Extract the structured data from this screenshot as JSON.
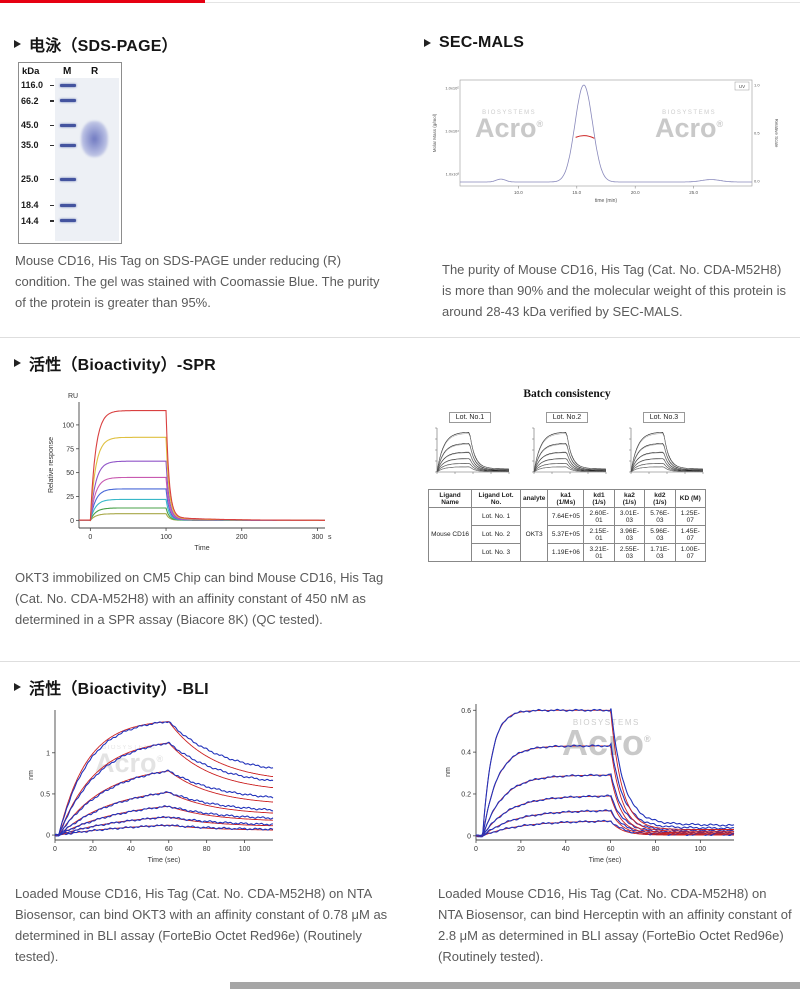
{
  "colors": {
    "accent_red": "#e60012"
  },
  "watermark": {
    "brand": "Acro",
    "reg": "®",
    "sub": "BIOSYSTEMS"
  },
  "sections": {
    "sds_page": {
      "title": "电泳（SDS-PAGE）",
      "caption": "Mouse CD16, His Tag on SDS-PAGE under reducing (R) condition. The gel was stained with Coomassie Blue. The purity of the protein is greater than 95%."
    },
    "sec_mals": {
      "title": "SEC-MALS",
      "caption": "The purity of Mouse CD16, His Tag (Cat. No. CDA-M52H8) is more than 90% and the molecular weight of this protein is around 28-43 kDa verified by SEC-MALS."
    },
    "spr": {
      "title": "活性（Bioactivity）-SPR",
      "caption": "OKT3 immobilized on CM5 Chip can bind Mouse CD16, His Tag (Cat. No. CDA-M52H8) with an affinity constant of 450 nM as determined in a SPR assay (Biacore 8K) (QC tested)."
    },
    "bli": {
      "title": "活性（Bioactivity）-BLI",
      "caption_left": "Loaded Mouse CD16, His Tag (Cat. No. CDA-M52H8) on NTA Biosensor, can bind OKT3 with an affinity constant of 0.78 μM as determined in BLI assay (ForteBio Octet Red96e) (Routinely tested).",
      "caption_right": "Loaded Mouse CD16, His Tag (Cat. No. CDA-M52H8) on NTA Biosensor, can bind Herceptin with an affinity constant of 2.8 μM as determined in BLI assay (ForteBio Octet Red96e) (Routinely tested)."
    }
  },
  "chart_data": [
    {
      "id": "sds_page_gel",
      "type": "gel",
      "kda_header": "kDa",
      "lanes": [
        "M",
        "R"
      ],
      "markers": [
        {
          "label": "116.0",
          "pos": 4
        },
        {
          "label": "66.2",
          "pos": 14
        },
        {
          "label": "45.0",
          "pos": 30
        },
        {
          "label": "35.0",
          "pos": 43
        },
        {
          "label": "25.0",
          "pos": 65
        },
        {
          "label": "18.4",
          "pos": 82
        },
        {
          "label": "14.4",
          "pos": 92
        }
      ],
      "sample_band": {
        "lane": "R",
        "center_pos": 39,
        "spread": 12
      }
    },
    {
      "id": "sec_mals",
      "type": "line",
      "xlabel": "time (min)",
      "ylabel_left": "Molar Mass (g/mol)",
      "ylabel_right": "Relative Scale",
      "x_range": [
        5,
        30
      ],
      "xticks": [
        10.0,
        15.0,
        20.0,
        25.0
      ],
      "yticks_left": [
        "1.0x10⁵",
        "1.0x10⁴",
        "1.0x10³"
      ],
      "yticks_right": [
        "1.0",
        "0.5",
        "0.0"
      ],
      "legend": [
        "UV"
      ],
      "uv_peak": {
        "center": 15.6,
        "sigma": 0.75,
        "height": 1.0
      },
      "minor_bumps": [
        {
          "center": 8.5,
          "sigma": 0.4,
          "height": 0.03
        },
        {
          "center": 26.5,
          "sigma": 0.8,
          "height": 0.025
        }
      ],
      "molar_mass_segment": {
        "x1": 14.9,
        "x2": 16.5,
        "y": 0.46,
        "color": "#cc2222"
      },
      "line_color": "#8888bb"
    },
    {
      "id": "spr",
      "type": "sensorgram",
      "ylabel": "Relative response",
      "y_unit": "RU",
      "xlabel": "Time",
      "x_unit": "s",
      "yticks": [
        0,
        25,
        50,
        75,
        100
      ],
      "xticks": [
        0,
        100,
        200,
        300
      ],
      "assoc_end": 100,
      "x_max": 310,
      "plateaus": [
        115,
        87,
        62,
        45,
        33,
        22,
        13,
        7
      ],
      "colors": [
        "#d94040",
        "#dfc040",
        "#9055c8",
        "#c85ab0",
        "#4868d8",
        "#38b8c8",
        "#48a048",
        "#a8a848"
      ]
    },
    {
      "id": "batch",
      "type": "table",
      "title": "Batch consistency",
      "lots": [
        "Lot. No.1",
        "Lot. No.2",
        "Lot. No.3"
      ],
      "table": {
        "headers": [
          "Ligand Name",
          "Ligand Lot. No.",
          "analyte",
          "ka1 (1/Ms)",
          "kd1 (1/s)",
          "ka2 (1/s)",
          "kd2 (1/s)",
          "KD (M)"
        ],
        "ligand": "Mouse CD16",
        "analyte": "OKT3",
        "rows": [
          [
            "Lot. No. 1",
            "7.64E+05",
            "2.60E-01",
            "3.01E-03",
            "5.76E-03",
            "1.25E-07"
          ],
          [
            "Lot. No. 2",
            "5.37E+05",
            "2.15E-01",
            "3.96E-03",
            "5.96E-03",
            "1.45E-07"
          ],
          [
            "Lot. No. 3",
            "1.19E+06",
            "3.21E-01",
            "2.55E-03",
            "1.71E-03",
            "1.00E-07"
          ]
        ]
      }
    },
    {
      "id": "bli_okt3",
      "type": "sensorgram",
      "ylabel": "nm",
      "xlabel": "Time (sec)",
      "yticks": [
        0,
        0.5,
        1
      ],
      "xticks": [
        0,
        20,
        40,
        60,
        80,
        100
      ],
      "assoc_end": 60,
      "x_max": 115,
      "plateaus": [
        1.38,
        1.12,
        0.78,
        0.52,
        0.35,
        0.22,
        0.12
      ],
      "data_color": "#2233bb",
      "fit_color": "#cc2222"
    },
    {
      "id": "bli_herceptin",
      "type": "sensorgram",
      "ylabel": "nm",
      "xlabel": "Time (sec)",
      "yticks": [
        0,
        0.2,
        0.4,
        0.6
      ],
      "xticks": [
        0,
        20,
        40,
        60,
        80,
        100
      ],
      "assoc_end": 60,
      "x_max": 115,
      "plateaus": [
        0.6,
        0.43,
        0.29,
        0.19,
        0.12,
        0.07
      ],
      "data_color": "#2233bb",
      "fit_color": "#cc2222"
    }
  ]
}
